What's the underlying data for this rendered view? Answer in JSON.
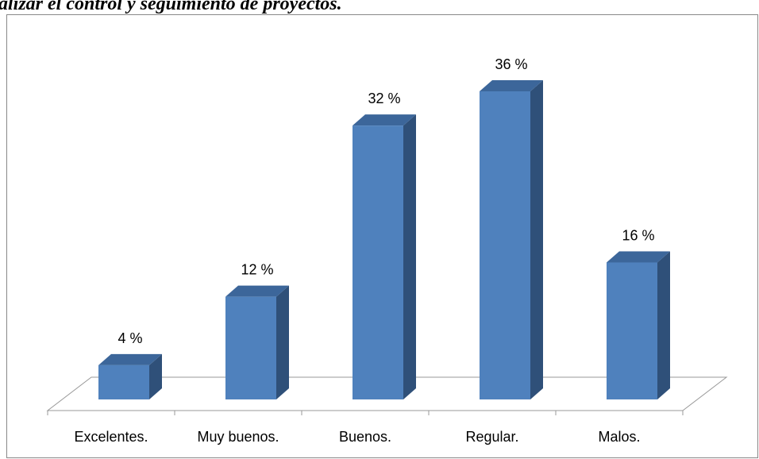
{
  "chart_data": {
    "type": "bar3d",
    "title": "alizar el control y seguimiento de proyectos.",
    "categories": [
      "Excelentes.",
      "Muy buenos.",
      "Buenos.",
      "Regular.",
      "Malos."
    ],
    "values": [
      4,
      12,
      32,
      36,
      16
    ],
    "value_labels": [
      "4 %",
      "12 %",
      "32 %",
      "36 %",
      "16 %"
    ],
    "color": "#4f81bd"
  }
}
